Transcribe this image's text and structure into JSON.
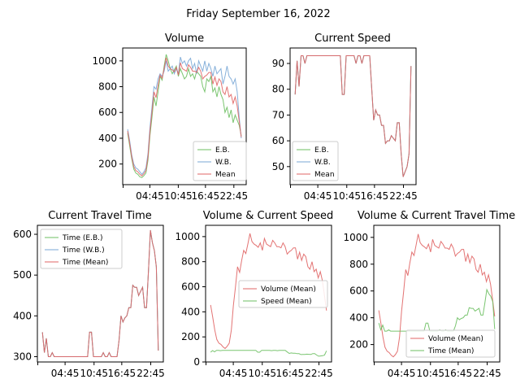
{
  "figure_title": "Friday September 16, 2022",
  "colors": {
    "eb": "#6cbf60",
    "wb": "#79a7d6",
    "mean": "#e06464",
    "overlap": "#6b6b50"
  },
  "chart_data": [
    {
      "type": "line",
      "title": "Volume",
      "x_ticks": [
        "04:45",
        "10:45",
        "16:45",
        "22:45"
      ],
      "y_ticks": [
        200,
        400,
        600,
        800,
        1000
      ],
      "ylim": [
        40,
        1100
      ],
      "legend": "lower-right",
      "series": [
        {
          "name": "E.B.",
          "color_key": "eb",
          "values": [
            440,
            340,
            240,
            160,
            130,
            120,
            100,
            95,
            110,
            130,
            230,
            420,
            560,
            720,
            650,
            760,
            880,
            850,
            960,
            1050,
            1000,
            940,
            900,
            930,
            960,
            880,
            940,
            900,
            860,
            880,
            940,
            880,
            900,
            860,
            920,
            900,
            880,
            800,
            760,
            860,
            840,
            880,
            760,
            790,
            720,
            800,
            740,
            700,
            600,
            640,
            560,
            620,
            520,
            580,
            540,
            500,
            420
          ]
        },
        {
          "name": "W.B.",
          "color_key": "wb",
          "values": [
            470,
            380,
            270,
            200,
            170,
            160,
            140,
            120,
            140,
            170,
            280,
            480,
            640,
            800,
            780,
            860,
            900,
            880,
            920,
            1000,
            920,
            940,
            960,
            900,
            940,
            900,
            1030,
            980,
            1000,
            960,
            1000,
            1020,
            940,
            980,
            900,
            1000,
            960,
            920,
            1000,
            920,
            980,
            940,
            880,
            960,
            900,
            920,
            940,
            820,
            880,
            960,
            880,
            860,
            820,
            860,
            760,
            560,
            400
          ]
        },
        {
          "name": "Mean",
          "color_key": "mean",
          "values": [
            455,
            360,
            255,
            180,
            150,
            140,
            120,
            108,
            125,
            150,
            255,
            450,
            600,
            760,
            715,
            810,
            890,
            865,
            940,
            1025,
            960,
            940,
            930,
            915,
            950,
            890,
            985,
            940,
            930,
            920,
            970,
            950,
            920,
            920,
            910,
            950,
            920,
            860,
            880,
            890,
            910,
            910,
            820,
            875,
            810,
            860,
            840,
            760,
            740,
            800,
            720,
            740,
            670,
            720,
            650,
            530,
            410
          ]
        }
      ]
    },
    {
      "type": "line",
      "title": "Current Speed",
      "x_ticks": [
        "04:45",
        "10:45",
        "16:45",
        "22:45"
      ],
      "y_ticks": [
        50,
        60,
        70,
        80,
        90
      ],
      "ylim": [
        43,
        96
      ],
      "legend": "lower-left",
      "series": [
        {
          "name": "E.B.",
          "color_key": "eb",
          "values": [
            78,
            91,
            81,
            93,
            93,
            90,
            93,
            93,
            93,
            93,
            93,
            93,
            93,
            93,
            93,
            93,
            93,
            93,
            93,
            93,
            93,
            93,
            93,
            93,
            78,
            78,
            93,
            93,
            93,
            93,
            93,
            90,
            93,
            93,
            90,
            93,
            93,
            93,
            93,
            80,
            68,
            72,
            70,
            70,
            66,
            66,
            59,
            60,
            60,
            62,
            61,
            60,
            67,
            67,
            55,
            46,
            48,
            50,
            55,
            89
          ]
        },
        {
          "name": "W.B.",
          "color_key": "wb",
          "values": [
            78,
            91,
            81,
            93,
            93,
            90,
            93,
            93,
            93,
            93,
            93,
            93,
            93,
            93,
            93,
            93,
            93,
            93,
            93,
            93,
            93,
            93,
            93,
            93,
            78,
            78,
            93,
            93,
            93,
            93,
            93,
            90,
            93,
            93,
            90,
            93,
            93,
            93,
            93,
            80,
            68,
            72,
            70,
            70,
            66,
            66,
            59,
            60,
            60,
            62,
            61,
            60,
            67,
            67,
            55,
            46,
            48,
            50,
            55,
            89
          ]
        },
        {
          "name": "Mean",
          "color_key": "mean",
          "values": [
            78,
            91,
            81,
            93,
            93,
            90,
            93,
            93,
            93,
            93,
            93,
            93,
            93,
            93,
            93,
            93,
            93,
            93,
            93,
            93,
            93,
            93,
            93,
            93,
            78,
            78,
            93,
            93,
            93,
            93,
            93,
            90,
            93,
            93,
            90,
            93,
            93,
            93,
            93,
            80,
            68,
            72,
            70,
            70,
            66,
            66,
            59,
            60,
            60,
            62,
            61,
            60,
            67,
            67,
            55,
            46,
            48,
            50,
            55,
            89
          ]
        }
      ]
    },
    {
      "type": "line",
      "title": "Current Travel Time",
      "x_ticks": [
        "04:45",
        "10:45",
        "16:45",
        "22:45"
      ],
      "y_ticks": [
        300,
        400,
        500,
        600
      ],
      "ylim": [
        287,
        622
      ],
      "legend": "upper-left",
      "series": [
        {
          "name": "Time (E.B.)",
          "color_key": "eb",
          "values": [
            360,
            310,
            345,
            300,
            300,
            310,
            300,
            300,
            300,
            300,
            300,
            300,
            300,
            300,
            300,
            300,
            300,
            300,
            300,
            300,
            300,
            300,
            300,
            300,
            360,
            360,
            300,
            300,
            300,
            300,
            300,
            310,
            300,
            300,
            310,
            300,
            300,
            300,
            300,
            340,
            400,
            385,
            395,
            400,
            420,
            420,
            475,
            470,
            470,
            450,
            460,
            470,
            420,
            420,
            510,
            610,
            580,
            560,
            520,
            315
          ]
        },
        {
          "name": "Time (W.B.)",
          "color_key": "wb",
          "values": [
            360,
            310,
            345,
            300,
            300,
            310,
            300,
            300,
            300,
            300,
            300,
            300,
            300,
            300,
            300,
            300,
            300,
            300,
            300,
            300,
            300,
            300,
            300,
            300,
            360,
            360,
            300,
            300,
            300,
            300,
            300,
            310,
            300,
            300,
            310,
            300,
            300,
            300,
            300,
            340,
            400,
            385,
            395,
            400,
            420,
            420,
            475,
            470,
            470,
            450,
            460,
            470,
            420,
            420,
            510,
            610,
            580,
            560,
            520,
            315
          ]
        },
        {
          "name": "Time (Mean)",
          "color_key": "mean",
          "values": [
            360,
            310,
            345,
            300,
            300,
            310,
            300,
            300,
            300,
            300,
            300,
            300,
            300,
            300,
            300,
            300,
            300,
            300,
            300,
            300,
            300,
            300,
            300,
            300,
            360,
            360,
            300,
            300,
            300,
            300,
            300,
            310,
            300,
            300,
            310,
            300,
            300,
            300,
            300,
            340,
            400,
            385,
            395,
            400,
            420,
            420,
            475,
            470,
            470,
            450,
            460,
            470,
            420,
            420,
            510,
            610,
            580,
            560,
            520,
            315
          ]
        }
      ]
    },
    {
      "type": "line",
      "title": "Volume & Current Speed",
      "x_ticks": [
        "04:45",
        "10:45",
        "16:45",
        "22:45"
      ],
      "y_ticks": [
        0,
        200,
        400,
        600,
        800,
        1000
      ],
      "ylim": [
        0,
        1090
      ],
      "legend": "center-right",
      "series": [
        {
          "name": "Volume (Mean)",
          "color_key": "mean",
          "values": [
            455,
            360,
            255,
            180,
            150,
            140,
            120,
            108,
            125,
            150,
            255,
            450,
            600,
            760,
            715,
            810,
            890,
            865,
            940,
            1025,
            960,
            940,
            930,
            915,
            950,
            890,
            985,
            940,
            930,
            920,
            970,
            950,
            920,
            920,
            910,
            950,
            920,
            860,
            880,
            890,
            910,
            910,
            820,
            875,
            810,
            860,
            840,
            760,
            740,
            800,
            720,
            740,
            670,
            720,
            650,
            530,
            410
          ]
        },
        {
          "name": "Speed (Mean)",
          "color_key": "eb",
          "values": [
            78,
            91,
            81,
            93,
            93,
            90,
            93,
            93,
            93,
            93,
            93,
            93,
            93,
            93,
            93,
            93,
            93,
            93,
            93,
            93,
            93,
            93,
            93,
            93,
            78,
            78,
            93,
            93,
            93,
            93,
            93,
            90,
            93,
            93,
            90,
            93,
            93,
            93,
            93,
            80,
            68,
            72,
            70,
            70,
            66,
            66,
            59,
            60,
            60,
            62,
            61,
            60,
            67,
            67,
            55,
            46,
            48,
            50,
            55,
            89
          ]
        }
      ]
    },
    {
      "type": "line",
      "title": "Volume & Current Travel Time",
      "x_ticks": [
        "04:45",
        "10:45",
        "16:45",
        "22:45"
      ],
      "y_ticks": [
        200,
        400,
        600,
        800,
        1000
      ],
      "ylim": [
        70,
        1090
      ],
      "legend": "lower-right",
      "series": [
        {
          "name": "Volume (Mean)",
          "color_key": "mean",
          "values": [
            455,
            360,
            255,
            180,
            150,
            140,
            120,
            108,
            125,
            150,
            255,
            450,
            600,
            760,
            715,
            810,
            890,
            865,
            940,
            1025,
            960,
            940,
            930,
            915,
            950,
            890,
            985,
            940,
            930,
            920,
            970,
            950,
            920,
            920,
            910,
            950,
            920,
            860,
            880,
            890,
            910,
            910,
            820,
            875,
            810,
            860,
            840,
            760,
            740,
            800,
            720,
            740,
            670,
            720,
            650,
            530,
            410
          ]
        },
        {
          "name": "Time (Mean)",
          "color_key": "eb",
          "values": [
            360,
            310,
            345,
            300,
            300,
            310,
            300,
            300,
            300,
            300,
            300,
            300,
            300,
            300,
            300,
            300,
            300,
            300,
            300,
            300,
            300,
            300,
            300,
            300,
            360,
            360,
            300,
            300,
            300,
            300,
            300,
            310,
            300,
            300,
            310,
            300,
            300,
            300,
            300,
            340,
            400,
            385,
            395,
            400,
            420,
            420,
            475,
            470,
            470,
            450,
            460,
            470,
            420,
            420,
            510,
            610,
            580,
            560,
            520,
            315
          ]
        }
      ]
    }
  ]
}
